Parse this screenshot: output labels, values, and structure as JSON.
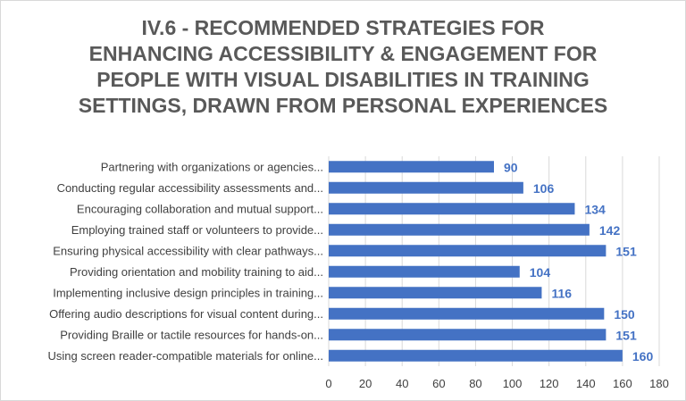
{
  "chart_data": {
    "type": "bar",
    "orientation": "horizontal",
    "title_lines": [
      "IV.6 - RECOMMENDED STRATEGIES FOR",
      "ENHANCING ACCESSIBILITY & ENGAGEMENT FOR",
      "PEOPLE WITH VISUAL DISABILITIES IN TRAINING",
      "SETTINGS, DRAWN FROM PERSONAL EXPERIENCES"
    ],
    "categories": [
      "Partnering with organizations or agencies...",
      "Conducting regular accessibility assessments and...",
      "Encouraging collaboration and mutual support...",
      "Employing trained staff or volunteers to provide...",
      "Ensuring physical accessibility with clear pathways...",
      "Providing orientation and mobility training to aid...",
      "Implementing inclusive design principles in training...",
      "Offering audio descriptions for visual content during...",
      "Providing Braille or tactile resources for hands-on...",
      "Using screen reader-compatible materials for online..."
    ],
    "values": [
      90,
      106,
      134,
      142,
      151,
      104,
      116,
      150,
      151,
      160
    ],
    "xlim": [
      0,
      180
    ],
    "xticks": [
      0,
      20,
      40,
      60,
      80,
      100,
      120,
      140,
      160,
      180
    ],
    "grid": "vertical",
    "data_labels": true,
    "bar_color": "#4472c4",
    "label_color": "#4472c4",
    "text_color": "#404040",
    "grid_color": "#d9d9d9",
    "legend": "none"
  }
}
